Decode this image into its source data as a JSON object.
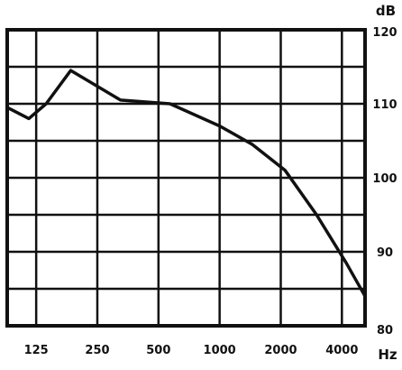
{
  "chart_data": {
    "type": "line",
    "title": "",
    "xlabel": "Hz",
    "ylabel": "dB",
    "x_scale": "log",
    "xlim": [
      90,
      5200
    ],
    "ylim": [
      80,
      120
    ],
    "grid": true,
    "x_ticks": [
      {
        "value": 125,
        "label": "125"
      },
      {
        "value": 250,
        "label": "250"
      },
      {
        "value": 500,
        "label": "500"
      },
      {
        "value": 1000,
        "label": "1000"
      },
      {
        "value": 2000,
        "label": "2000"
      },
      {
        "value": 4000,
        "label": "4000"
      }
    ],
    "y_ticks": [
      {
        "value": 80,
        "label": "80"
      },
      {
        "value": 90,
        "label": "90"
      },
      {
        "value": 100,
        "label": "100"
      },
      {
        "value": 110,
        "label": "110"
      },
      {
        "value": 120,
        "label": "120"
      }
    ],
    "series": [
      {
        "name": "",
        "color": "#111111",
        "points": [
          {
            "x": 90,
            "y": 109.5
          },
          {
            "x": 115,
            "y": 108
          },
          {
            "x": 140,
            "y": 110
          },
          {
            "x": 185,
            "y": 114.5
          },
          {
            "x": 325,
            "y": 110.5
          },
          {
            "x": 570,
            "y": 110
          },
          {
            "x": 1000,
            "y": 107
          },
          {
            "x": 1450,
            "y": 104.5
          },
          {
            "x": 2100,
            "y": 101
          },
          {
            "x": 3000,
            "y": 95
          },
          {
            "x": 4200,
            "y": 88.5
          },
          {
            "x": 5200,
            "y": 84
          }
        ]
      }
    ]
  }
}
